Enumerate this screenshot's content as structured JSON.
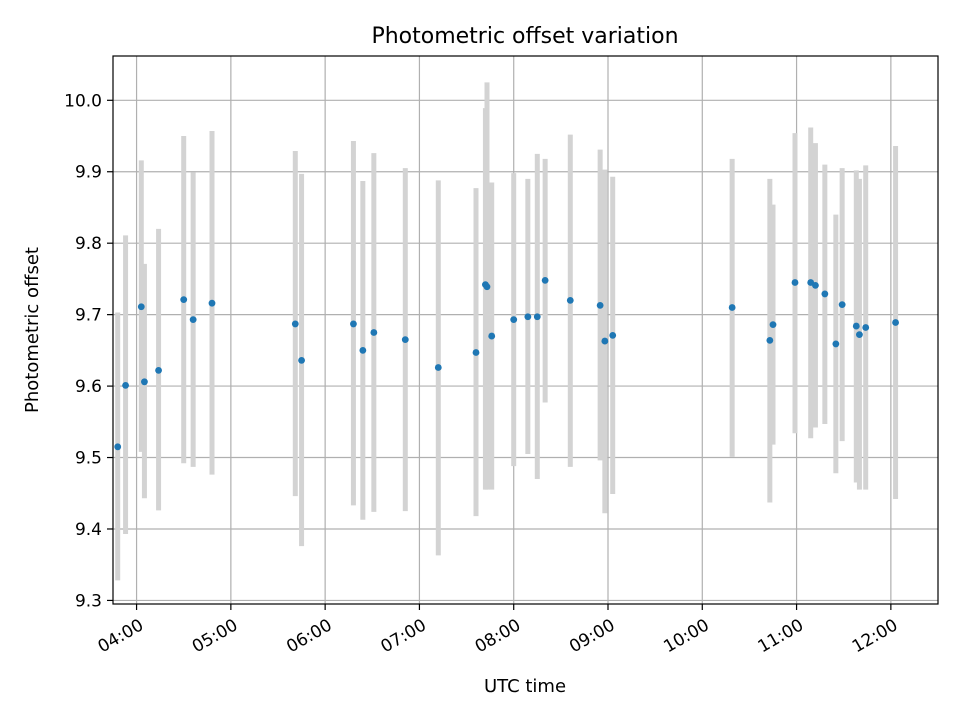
{
  "chart_data": {
    "type": "scatter",
    "title": "Photometric offset variation",
    "xlabel": "UTC time",
    "ylabel": "Photometric offset",
    "xlim": [
      "03:45",
      "12:30"
    ],
    "ylim": [
      9.295,
      10.062
    ],
    "x_ticks": [
      "04:00",
      "05:00",
      "06:00",
      "07:00",
      "08:00",
      "09:00",
      "10:00",
      "11:00",
      "12:00"
    ],
    "y_ticks": [
      "9.3",
      "9.4",
      "9.5",
      "9.6",
      "9.7",
      "9.8",
      "9.9",
      "10.0"
    ],
    "grid": true,
    "point_color": "#1f77b4",
    "errorbar_color": "#d3d3d3",
    "series": [
      {
        "points": [
          {
            "x": "03:48",
            "y": 9.515,
            "low": 9.328,
            "high": 9.703
          },
          {
            "x": "03:53",
            "y": 9.601,
            "low": 9.393,
            "high": 9.811
          },
          {
            "x": "04:03",
            "y": 9.711,
            "low": 9.508,
            "high": 9.916
          },
          {
            "x": "04:05",
            "y": 9.606,
            "low": 9.443,
            "high": 9.771
          },
          {
            "x": "04:14",
            "y": 9.622,
            "low": 9.426,
            "high": 9.82
          },
          {
            "x": "04:30",
            "y": 9.721,
            "low": 9.492,
            "high": 9.95
          },
          {
            "x": "04:36",
            "y": 9.693,
            "low": 9.487,
            "high": 9.899
          },
          {
            "x": "04:48",
            "y": 9.716,
            "low": 9.476,
            "high": 9.957
          },
          {
            "x": "05:41",
            "y": 9.687,
            "low": 9.446,
            "high": 9.929
          },
          {
            "x": "05:45",
            "y": 9.636,
            "low": 9.376,
            "high": 9.897
          },
          {
            "x": "06:18",
            "y": 9.687,
            "low": 9.433,
            "high": 9.943
          },
          {
            "x": "06:24",
            "y": 9.65,
            "low": 9.413,
            "high": 9.887
          },
          {
            "x": "06:31",
            "y": 9.675,
            "low": 9.424,
            "high": 9.926
          },
          {
            "x": "06:51",
            "y": 9.665,
            "low": 9.425,
            "high": 9.905
          },
          {
            "x": "07:12",
            "y": 9.626,
            "low": 9.363,
            "high": 9.888
          },
          {
            "x": "07:36",
            "y": 9.647,
            "low": 9.418,
            "high": 9.877
          },
          {
            "x": "07:42",
            "y": 9.742,
            "low": 9.455,
            "high": 9.989
          },
          {
            "x": "07:43",
            "y": 9.739,
            "low": 9.455,
            "high": 10.025
          },
          {
            "x": "07:46",
            "y": 9.67,
            "low": 9.455,
            "high": 9.885
          },
          {
            "x": "08:00",
            "y": 9.693,
            "low": 9.488,
            "high": 9.898
          },
          {
            "x": "08:09",
            "y": 9.697,
            "low": 9.505,
            "high": 9.89
          },
          {
            "x": "08:15",
            "y": 9.697,
            "low": 9.47,
            "high": 9.925
          },
          {
            "x": "08:20",
            "y": 9.748,
            "low": 9.577,
            "high": 9.918
          },
          {
            "x": "08:36",
            "y": 9.72,
            "low": 9.487,
            "high": 9.952
          },
          {
            "x": "08:55",
            "y": 9.713,
            "low": 9.496,
            "high": 9.931
          },
          {
            "x": "08:58",
            "y": 9.663,
            "low": 9.422,
            "high": 9.903
          },
          {
            "x": "09:03",
            "y": 9.671,
            "low": 9.449,
            "high": 9.893
          },
          {
            "x": "10:19",
            "y": 9.71,
            "low": 9.501,
            "high": 9.918
          },
          {
            "x": "10:43",
            "y": 9.664,
            "low": 9.437,
            "high": 9.89
          },
          {
            "x": "10:45",
            "y": 9.686,
            "low": 9.518,
            "high": 9.854
          },
          {
            "x": "10:59",
            "y": 9.745,
            "low": 9.534,
            "high": 9.954
          },
          {
            "x": "11:09",
            "y": 9.745,
            "low": 9.527,
            "high": 9.962
          },
          {
            "x": "11:12",
            "y": 9.741,
            "low": 9.542,
            "high": 9.94
          },
          {
            "x": "11:18",
            "y": 9.729,
            "low": 9.547,
            "high": 9.91
          },
          {
            "x": "11:25",
            "y": 9.659,
            "low": 9.478,
            "high": 9.84
          },
          {
            "x": "11:29",
            "y": 9.714,
            "low": 9.523,
            "high": 9.905
          },
          {
            "x": "11:38",
            "y": 9.684,
            "low": 9.465,
            "high": 9.902
          },
          {
            "x": "11:40",
            "y": 9.672,
            "low": 9.455,
            "high": 9.89
          },
          {
            "x": "11:44",
            "y": 9.682,
            "low": 9.455,
            "high": 9.909
          },
          {
            "x": "12:03",
            "y": 9.689,
            "low": 9.442,
            "high": 9.936
          }
        ]
      }
    ]
  }
}
